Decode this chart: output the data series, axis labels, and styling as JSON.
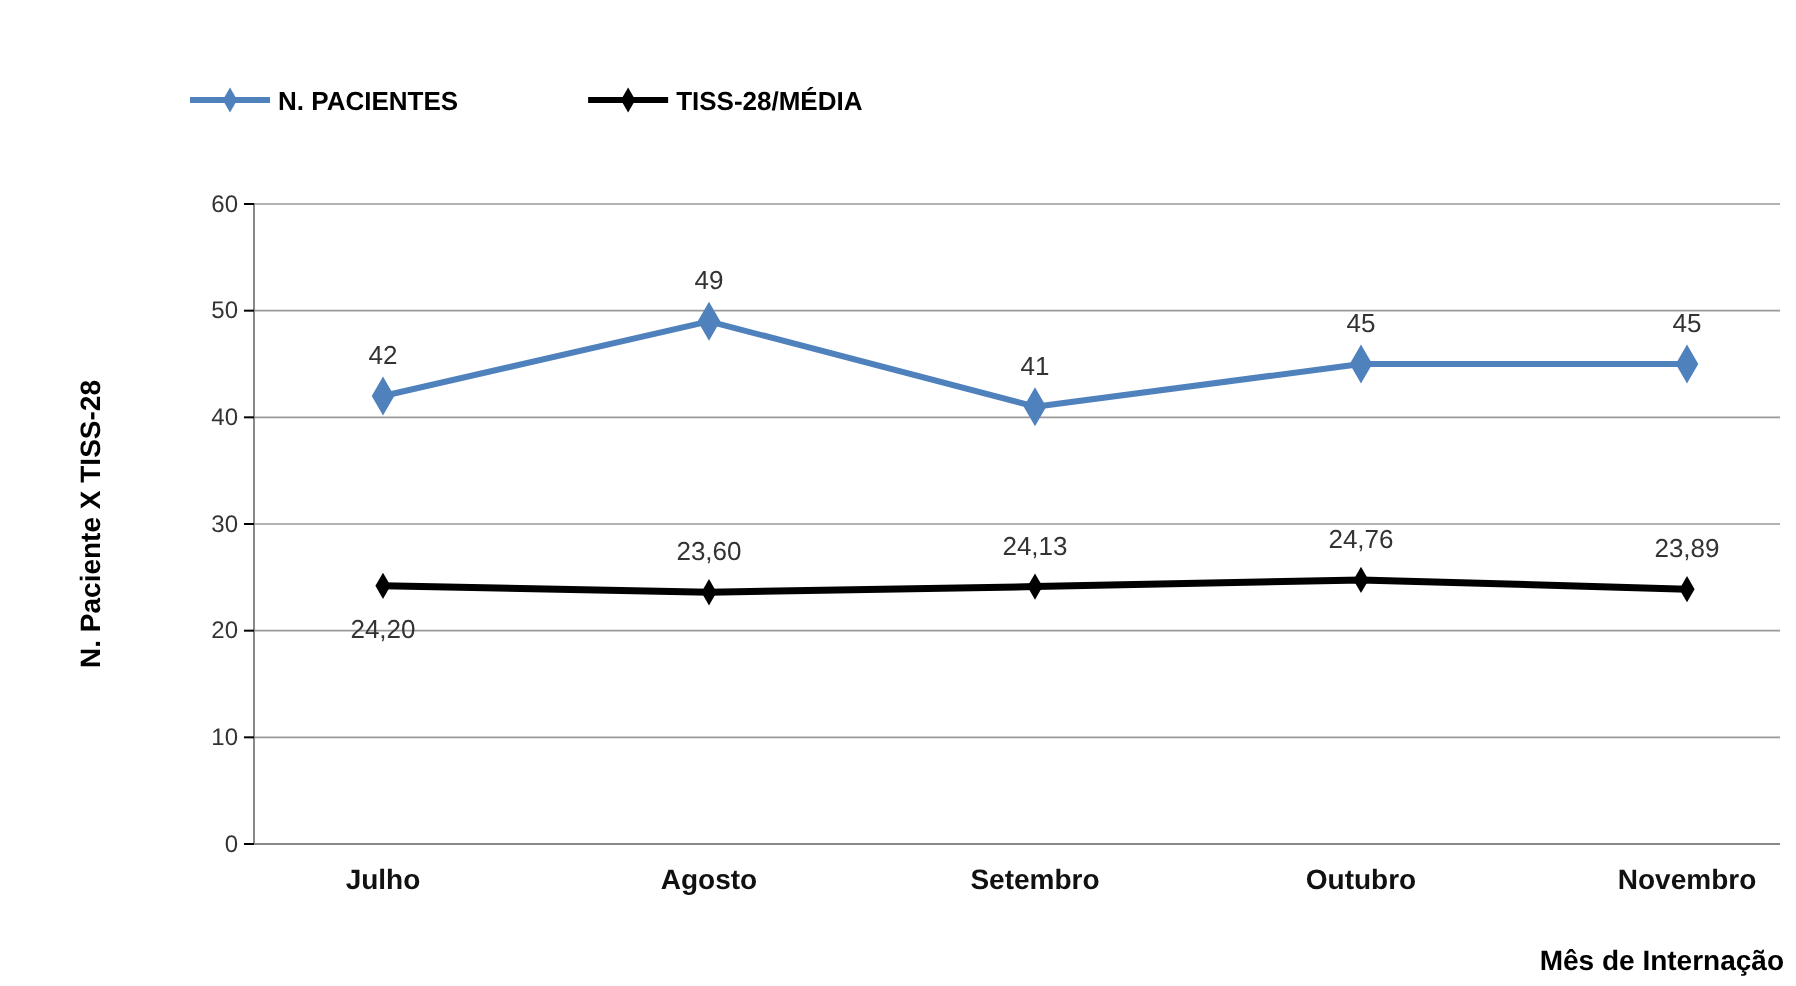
{
  "chart_data": {
    "type": "line",
    "xlabel": "Mês de Internação",
    "ylabel": "N. Paciente X TISS-28",
    "categories": [
      "Julho",
      "Agosto",
      "Setembro",
      "Outubro",
      "Novembro"
    ],
    "series": [
      {
        "name": "N. PACIENTES",
        "color": "#4f81bd",
        "values": [
          42,
          49,
          41,
          45,
          45
        ],
        "value_labels": [
          "42",
          "49",
          "41",
          "45",
          "45"
        ]
      },
      {
        "name": "TISS-28/MÉDIA",
        "color": "#000000",
        "values": [
          24.2,
          23.6,
          24.13,
          24.76,
          23.89
        ],
        "value_labels": [
          "24,20",
          "23,60",
          "24,13",
          "24,76",
          "23,89"
        ]
      }
    ],
    "ylim": [
      0,
      60
    ],
    "yticks": [
      0,
      10,
      20,
      30,
      40,
      50,
      60
    ],
    "grid": "y",
    "legend": "top left",
    "marker": "diamond",
    "line_style": "solid"
  }
}
